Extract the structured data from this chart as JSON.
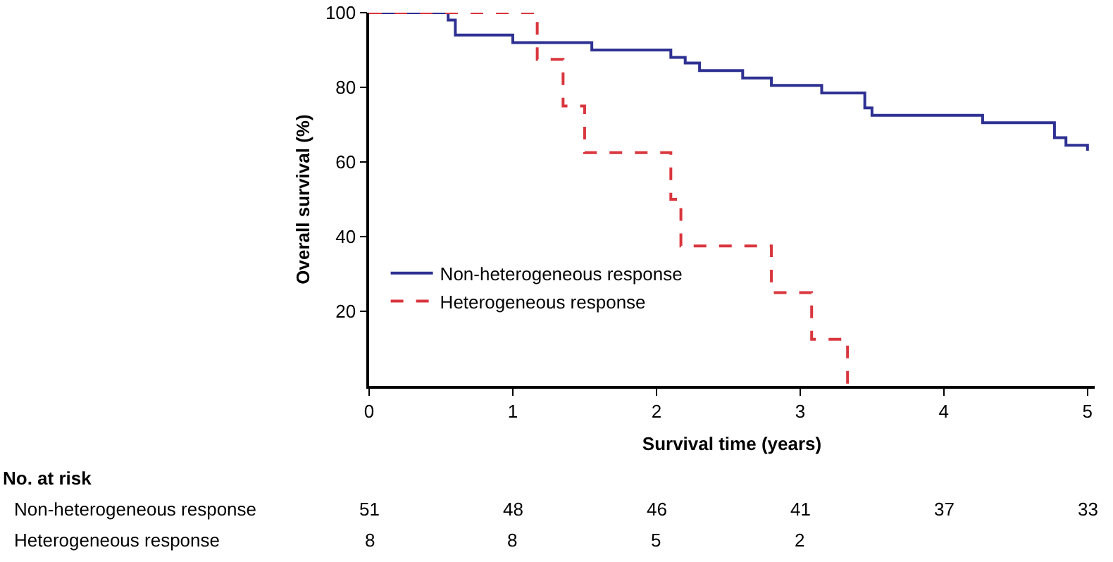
{
  "chart_data": {
    "type": "step",
    "xlabel": "Survival time (years)",
    "ylabel": "Overall survival (%)",
    "xlim": [
      0,
      5.05
    ],
    "xticks": [
      0,
      1,
      2,
      3,
      4,
      5
    ],
    "ylim": [
      0,
      100
    ],
    "yticks": [
      20,
      40,
      60,
      80,
      100
    ],
    "grid": false,
    "legend": "bottom left",
    "marker": "none",
    "series": [
      {
        "name": "Non-heterogeneous response",
        "color": "#2e3192",
        "line_style": "solid",
        "x": [
          0,
          0.55,
          0.6,
          1.0,
          1.55,
          2.1,
          2.2,
          2.3,
          2.6,
          2.8,
          3.15,
          3.45,
          3.5,
          4.27,
          4.77,
          4.85,
          5.0
        ],
        "values": [
          100,
          98,
          94,
          92,
          90,
          88,
          86.5,
          84.5,
          82.5,
          80.5,
          78.5,
          74.5,
          72.5,
          70.5,
          66.5,
          64.5,
          63
        ]
      },
      {
        "name": "Heterogeneous response",
        "color": "#d9363e",
        "line_style": "dashed",
        "x": [
          0,
          1.17,
          1.35,
          1.5,
          2.1,
          2.17,
          2.8,
          3.08,
          3.33
        ],
        "values": [
          100,
          87.5,
          75,
          62.5,
          50,
          37.5,
          25,
          12.5,
          0
        ]
      }
    ],
    "annotations": [
      "No. at risk",
      "Non-heterogeneous response",
      "51",
      "48",
      "46",
      "41",
      "37",
      "33",
      "Heterogeneous response",
      "8",
      "8",
      "5",
      "2"
    ]
  }
}
